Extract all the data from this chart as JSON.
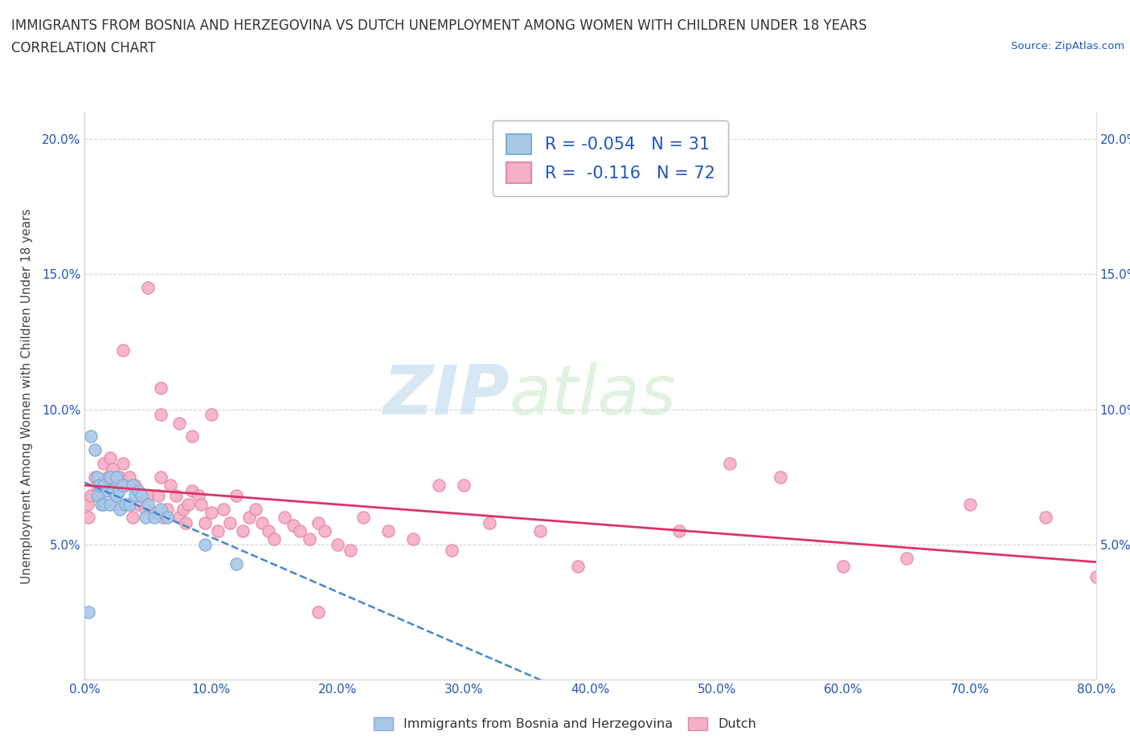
{
  "title_line1": "IMMIGRANTS FROM BOSNIA AND HERZEGOVINA VS DUTCH UNEMPLOYMENT AMONG WOMEN WITH CHILDREN UNDER 18 YEARS",
  "title_line2": "CORRELATION CHART",
  "source": "Source: ZipAtlas.com",
  "ylabel": "Unemployment Among Women with Children Under 18 years",
  "xlim": [
    0.0,
    0.8
  ],
  "ylim": [
    0.0,
    0.21
  ],
  "xticks": [
    0.0,
    0.1,
    0.2,
    0.3,
    0.4,
    0.5,
    0.6,
    0.7,
    0.8
  ],
  "xticklabels": [
    "0.0%",
    "10.0%",
    "20.0%",
    "30.0%",
    "40.0%",
    "50.0%",
    "60.0%",
    "70.0%",
    "80.0%"
  ],
  "yticks": [
    0.05,
    0.1,
    0.15,
    0.2
  ],
  "yticklabels": [
    "5.0%",
    "10.0%",
    "15.0%",
    "20.0%"
  ],
  "blue_R": -0.054,
  "blue_N": 31,
  "pink_R": -0.116,
  "pink_N": 72,
  "blue_color": "#a8c8e8",
  "pink_color": "#f4b0c4",
  "blue_edge": "#80acd8",
  "pink_edge": "#e888a8",
  "trendline_blue_color": "#4488cc",
  "trendline_pink_color": "#dd3366",
  "watermark_zip": "ZIP",
  "watermark_atlas": "atlas",
  "legend_blue_label": "Immigrants from Bosnia and Herzegovina",
  "legend_pink_label": "Dutch",
  "blue_scatter_x": [
    0.003,
    0.005,
    0.008,
    0.01,
    0.01,
    0.012,
    0.013,
    0.015,
    0.015,
    0.018,
    0.02,
    0.02,
    0.022,
    0.025,
    0.025,
    0.027,
    0.028,
    0.03,
    0.032,
    0.035,
    0.038,
    0.04,
    0.042,
    0.045,
    0.048,
    0.05,
    0.055,
    0.06,
    0.065,
    0.095,
    0.12
  ],
  "blue_scatter_y": [
    0.025,
    0.09,
    0.085,
    0.075,
    0.068,
    0.072,
    0.065,
    0.072,
    0.065,
    0.07,
    0.075,
    0.065,
    0.07,
    0.075,
    0.068,
    0.07,
    0.063,
    0.072,
    0.065,
    0.065,
    0.072,
    0.068,
    0.07,
    0.068,
    0.06,
    0.065,
    0.06,
    0.063,
    0.06,
    0.05,
    0.043
  ],
  "pink_scatter_x": [
    0.002,
    0.003,
    0.005,
    0.008,
    0.01,
    0.012,
    0.015,
    0.018,
    0.02,
    0.02,
    0.022,
    0.025,
    0.028,
    0.03,
    0.032,
    0.035,
    0.038,
    0.04,
    0.042,
    0.045,
    0.048,
    0.05,
    0.05,
    0.055,
    0.058,
    0.06,
    0.062,
    0.065,
    0.068,
    0.072,
    0.075,
    0.078,
    0.08,
    0.082,
    0.085,
    0.09,
    0.092,
    0.095,
    0.1,
    0.105,
    0.11,
    0.115,
    0.12,
    0.125,
    0.13,
    0.135,
    0.14,
    0.145,
    0.15,
    0.158,
    0.165,
    0.17,
    0.178,
    0.185,
    0.19,
    0.2,
    0.21,
    0.22,
    0.24,
    0.26,
    0.29,
    0.32,
    0.36,
    0.39,
    0.47,
    0.51,
    0.55,
    0.6,
    0.65,
    0.7,
    0.76,
    0.8
  ],
  "pink_scatter_y": [
    0.065,
    0.06,
    0.068,
    0.075,
    0.072,
    0.068,
    0.08,
    0.075,
    0.082,
    0.072,
    0.078,
    0.065,
    0.075,
    0.08,
    0.072,
    0.075,
    0.06,
    0.072,
    0.065,
    0.068,
    0.063,
    0.145,
    0.068,
    0.062,
    0.068,
    0.075,
    0.06,
    0.063,
    0.072,
    0.068,
    0.06,
    0.063,
    0.058,
    0.065,
    0.07,
    0.068,
    0.065,
    0.058,
    0.062,
    0.055,
    0.063,
    0.058,
    0.068,
    0.055,
    0.06,
    0.063,
    0.058,
    0.055,
    0.052,
    0.06,
    0.057,
    0.055,
    0.052,
    0.058,
    0.055,
    0.05,
    0.048,
    0.06,
    0.055,
    0.052,
    0.048,
    0.058,
    0.055,
    0.042,
    0.055,
    0.08,
    0.075,
    0.042,
    0.045,
    0.065,
    0.06,
    0.038
  ],
  "pink_extra_x": [
    0.03,
    0.06,
    0.06,
    0.075,
    0.085,
    0.1,
    0.3,
    0.28,
    0.185
  ],
  "pink_extra_y": [
    0.122,
    0.108,
    0.098,
    0.095,
    0.09,
    0.098,
    0.072,
    0.072,
    0.025
  ],
  "blue_trend_x0": 0.0,
  "blue_trend_y0": 0.07,
  "blue_trend_x1": 0.14,
  "blue_trend_y1": 0.06,
  "pink_trend_x0": 0.0,
  "pink_trend_y0": 0.073,
  "pink_trend_x1": 0.8,
  "pink_trend_y1": 0.043
}
